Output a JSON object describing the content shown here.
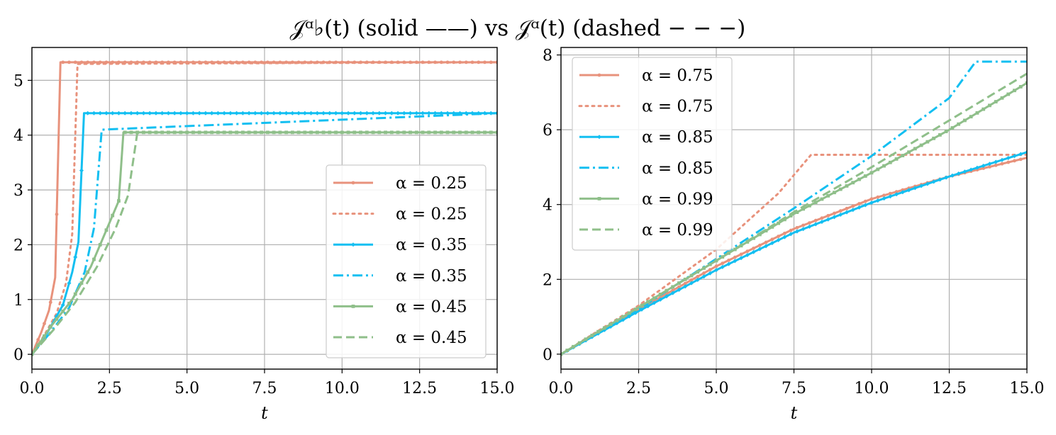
{
  "title": "𝒥ᵅ♭(t) (solid ——) vs 𝒥ᵅ(t) (dashed − − −)",
  "chart_data": [
    {
      "type": "line",
      "panel": "left",
      "xlabel": "t",
      "ylabel": "",
      "xlim": [
        0,
        15
      ],
      "ylim": [
        -0.27,
        5.6
      ],
      "xticks": [
        "0.0",
        "2.5",
        "5.0",
        "7.5",
        "10.0",
        "12.5",
        "15.0"
      ],
      "xtick_values": [
        0,
        2.5,
        5,
        7.5,
        10,
        12.5,
        15
      ],
      "yticks": [
        "0",
        "1",
        "2",
        "3",
        "4",
        "5"
      ],
      "ytick_values": [
        0,
        1,
        2,
        3,
        4,
        5
      ],
      "grid": true,
      "legend_position": "lower-right",
      "series": [
        {
          "name": "α = 0.25",
          "style": "solid",
          "marker": "circle",
          "color": "#E8927C",
          "x": [
            0,
            0.3,
            0.55,
            0.75,
            0.92,
            15
          ],
          "y": [
            0,
            0.4,
            0.8,
            1.4,
            5.33,
            5.33
          ]
        },
        {
          "name": "α = 0.25",
          "style": "dotted",
          "marker": "none",
          "color": "#E8927C",
          "x": [
            0,
            0.4,
            0.8,
            1.1,
            1.3,
            1.47,
            15
          ],
          "y": [
            0,
            0.35,
            0.75,
            1.3,
            2.2,
            5.3,
            5.33
          ]
        },
        {
          "name": "α = 0.35",
          "style": "solid",
          "marker": "diamond",
          "color": "#13BFF1",
          "x": [
            0,
            0.5,
            1.0,
            1.3,
            1.5,
            1.68,
            15
          ],
          "y": [
            0,
            0.4,
            0.9,
            1.5,
            2.05,
            4.4,
            4.4
          ]
        },
        {
          "name": "α = 0.35",
          "style": "dashdot",
          "marker": "none",
          "color": "#13BFF1",
          "x": [
            0,
            0.6,
            1.2,
            1.7,
            2.0,
            2.25,
            15
          ],
          "y": [
            0,
            0.4,
            0.85,
            1.5,
            2.3,
            4.1,
            4.4
          ]
        },
        {
          "name": "α = 0.45",
          "style": "solid",
          "marker": "square",
          "color": "#8FBF8A",
          "x": [
            0,
            0.6,
            1.3,
            1.9,
            2.5,
            2.8,
            2.95,
            15
          ],
          "y": [
            0,
            0.5,
            1.0,
            1.6,
            2.4,
            2.8,
            4.05,
            4.05
          ]
        },
        {
          "name": "α = 0.45",
          "style": "dashed",
          "marker": "none",
          "color": "#8FBF8A",
          "x": [
            0,
            0.7,
            1.4,
            2.1,
            2.7,
            3.1,
            3.4,
            15
          ],
          "y": [
            0,
            0.45,
            0.95,
            1.6,
            2.3,
            2.9,
            4.05,
            4.05
          ]
        }
      ]
    },
    {
      "type": "line",
      "panel": "right",
      "xlabel": "t",
      "ylabel": "",
      "xlim": [
        0,
        15
      ],
      "ylim": [
        -0.4,
        8.2
      ],
      "xticks": [
        "0.0",
        "2.5",
        "5.0",
        "7.5",
        "10.0",
        "12.5",
        "15.0"
      ],
      "xtick_values": [
        0,
        2.5,
        5,
        7.5,
        10,
        12.5,
        15
      ],
      "yticks": [
        "0",
        "2",
        "4",
        "6",
        "8"
      ],
      "ytick_values": [
        0,
        2,
        4,
        6,
        8
      ],
      "grid": true,
      "legend_position": "top-left",
      "series": [
        {
          "name": "α = 0.75",
          "style": "solid",
          "marker": "circle",
          "color": "#E8927C",
          "x": [
            0,
            2.5,
            5,
            7.5,
            10,
            12.5,
            15
          ],
          "y": [
            0,
            1.2,
            2.35,
            3.35,
            4.15,
            4.75,
            5.25
          ]
        },
        {
          "name": "α = 0.75",
          "style": "dotted",
          "marker": "none",
          "color": "#E8927C",
          "x": [
            0,
            2.5,
            5,
            7,
            8.05,
            15
          ],
          "y": [
            0,
            1.3,
            2.8,
            4.3,
            5.33,
            5.33
          ]
        },
        {
          "name": "α = 0.85",
          "style": "solid",
          "marker": "diamond",
          "color": "#13BFF1",
          "x": [
            0,
            2.5,
            5,
            7.5,
            10,
            12.5,
            15
          ],
          "y": [
            0,
            1.15,
            2.25,
            3.25,
            4.05,
            4.75,
            5.4
          ]
        },
        {
          "name": "α = 0.85",
          "style": "dashdot",
          "marker": "none",
          "color": "#13BFF1",
          "x": [
            0,
            2.5,
            5,
            7.5,
            10,
            12.5,
            13.35,
            15
          ],
          "y": [
            0,
            1.2,
            2.55,
            3.9,
            5.3,
            6.85,
            7.82,
            7.82
          ]
        },
        {
          "name": "α = 0.99",
          "style": "solid",
          "marker": "square",
          "color": "#8FBF8A",
          "x": [
            0,
            2.5,
            5,
            7.5,
            10,
            12.5,
            15
          ],
          "y": [
            0,
            1.25,
            2.5,
            3.75,
            4.85,
            6.0,
            7.25
          ]
        },
        {
          "name": "α = 0.99",
          "style": "dashed",
          "marker": "none",
          "color": "#8FBF8A",
          "x": [
            0,
            2.5,
            5,
            7.5,
            10,
            12.5,
            15
          ],
          "y": [
            0,
            1.25,
            2.5,
            3.8,
            5.0,
            6.25,
            7.5
          ]
        }
      ]
    }
  ]
}
